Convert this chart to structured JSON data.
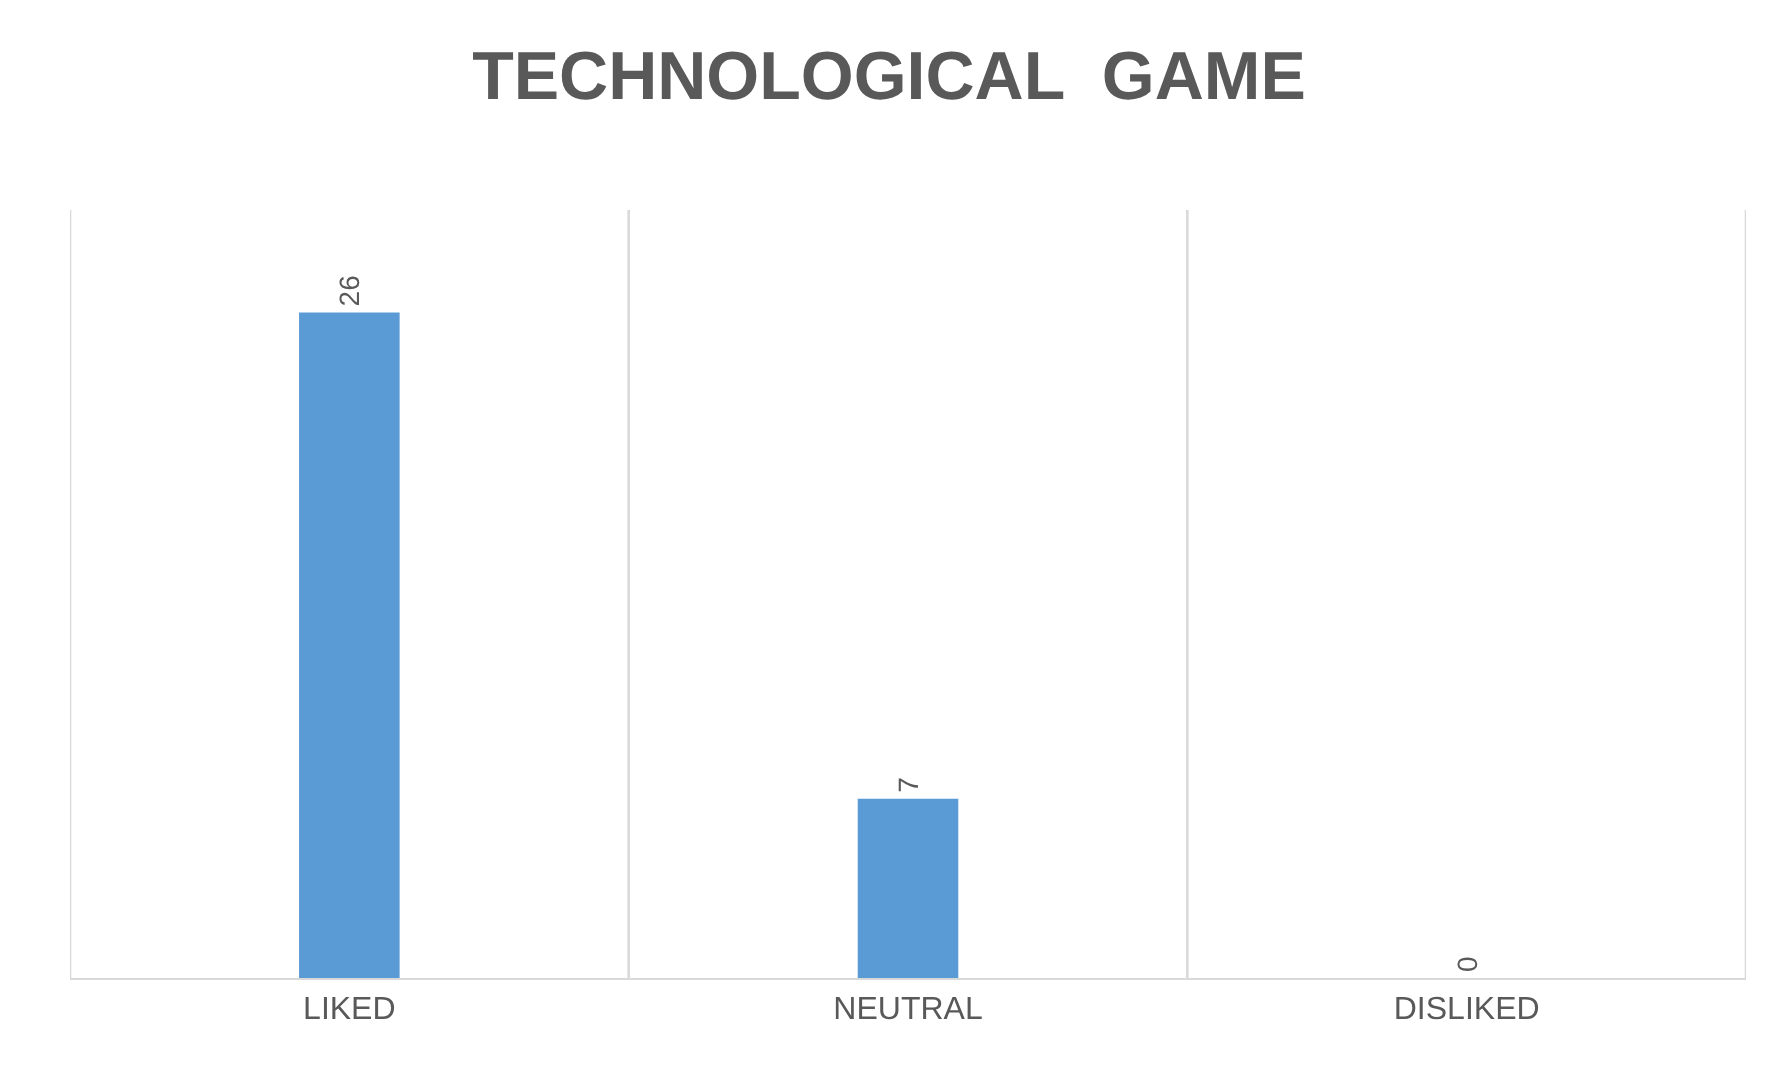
{
  "chart_data": {
    "type": "bar",
    "title": "TECHNOLOGICAL  GAME",
    "categories": [
      "LIKED",
      "NEUTRAL",
      "DISLIKED"
    ],
    "values": [
      26,
      7,
      0
    ],
    "color": "#5b9bd5",
    "data_labels": true,
    "ylim": [
      0,
      30
    ],
    "grid": "x",
    "legend": false,
    "tick_labels": "x"
  }
}
